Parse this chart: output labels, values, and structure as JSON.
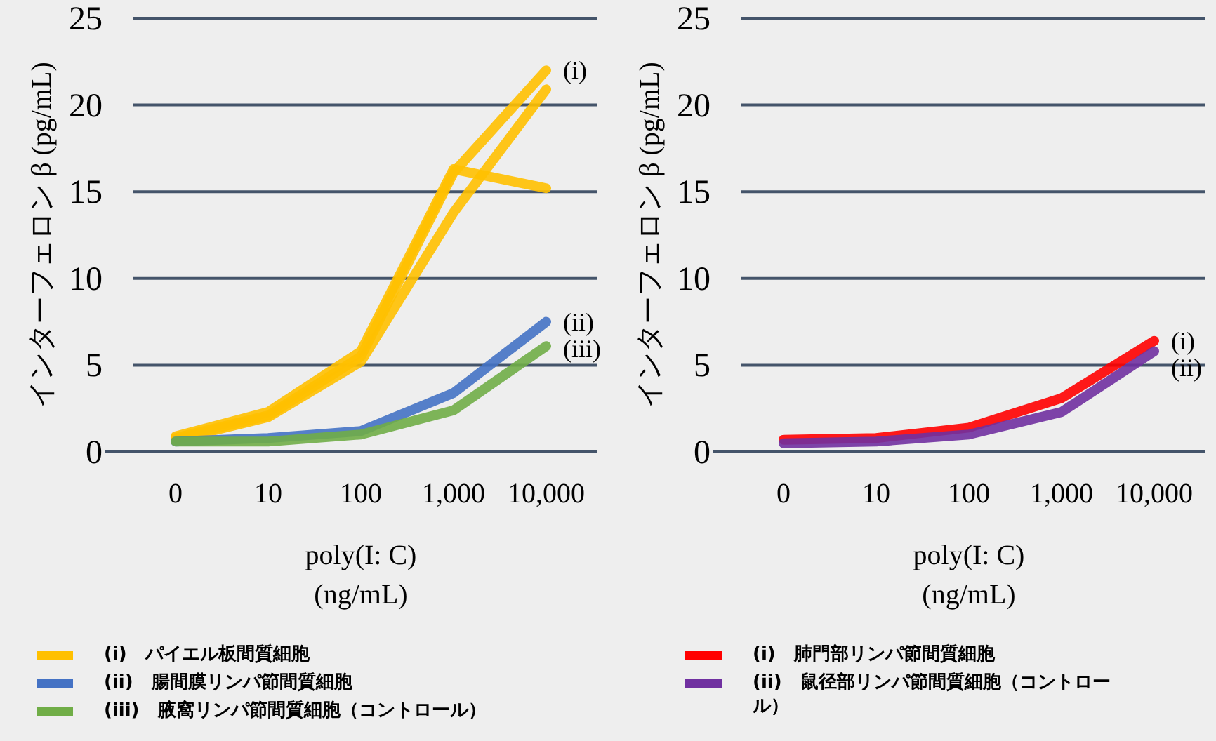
{
  "chart_data": [
    {
      "type": "line",
      "xlabel": "poly(I: C) (ng/mL)",
      "ylabel": "インターフェロン β (pg/mL)",
      "categories": [
        "0",
        "10",
        "100",
        "1,000",
        "10,000"
      ],
      "ylim": [
        0,
        25
      ],
      "yticks": [
        0,
        5,
        10,
        15,
        20,
        25
      ],
      "grid": "y",
      "legend": "bottom",
      "marker": "none",
      "line_style": "solid",
      "series": [
        {
          "name": "(i)　パイエル板間質細胞",
          "color": "#ffc000",
          "values": [
            0.9,
            2.3,
            5.8,
            16.3,
            15.2
          ]
        },
        {
          "color": "#ffc000",
          "values": [
            0.8,
            2.1,
            5.5,
            16.1,
            22.0
          ]
        },
        {
          "color": "#ffc000",
          "values": [
            0.7,
            2.0,
            5.2,
            13.8,
            20.9
          ]
        },
        {
          "name": "(ii)　腸間膜リンパ節間質細胞",
          "color": "#4472c4",
          "values": [
            0.6,
            0.8,
            1.2,
            3.4,
            7.5
          ]
        },
        {
          "name": "(iii)　腋窩リンパ節間質細胞（コントロール）",
          "color": "#70ad47",
          "values": [
            0.6,
            0.6,
            1.0,
            2.4,
            6.1
          ]
        }
      ],
      "annotations": [
        {
          "text": "(i)",
          "x": "10,000",
          "y": 22.0
        },
        {
          "text": "(ii)",
          "x": "10,000",
          "y": 7.5
        },
        {
          "text": "(iii)",
          "x": "10,000",
          "y": 6.1
        }
      ]
    },
    {
      "type": "line",
      "xlabel": "poly(I: C) (ng/mL)",
      "ylabel": "インターフェロン β (pg/mL)",
      "categories": [
        "0",
        "10",
        "100",
        "1,000",
        "10,000"
      ],
      "ylim": [
        0,
        25
      ],
      "yticks": [
        0,
        5,
        10,
        15,
        20,
        25
      ],
      "grid": "y",
      "legend": "bottom",
      "marker": "none",
      "line_style": "solid",
      "series": [
        {
          "name": "(i)　肺門部リンパ節間質細胞",
          "color": "#ff0000",
          "values": [
            0.7,
            0.8,
            1.4,
            3.1,
            6.4
          ]
        },
        {
          "name": "(ii)　鼠径部リンパ節間質細胞（コントロール）",
          "color": "#7030a0",
          "values": [
            0.5,
            0.6,
            1.0,
            2.3,
            5.8
          ]
        }
      ],
      "annotations": [
        {
          "text": "(i)",
          "x": "10,000",
          "y": 6.4
        },
        {
          "text": "(ii)",
          "x": "10,000",
          "y": 5.8
        }
      ]
    }
  ]
}
